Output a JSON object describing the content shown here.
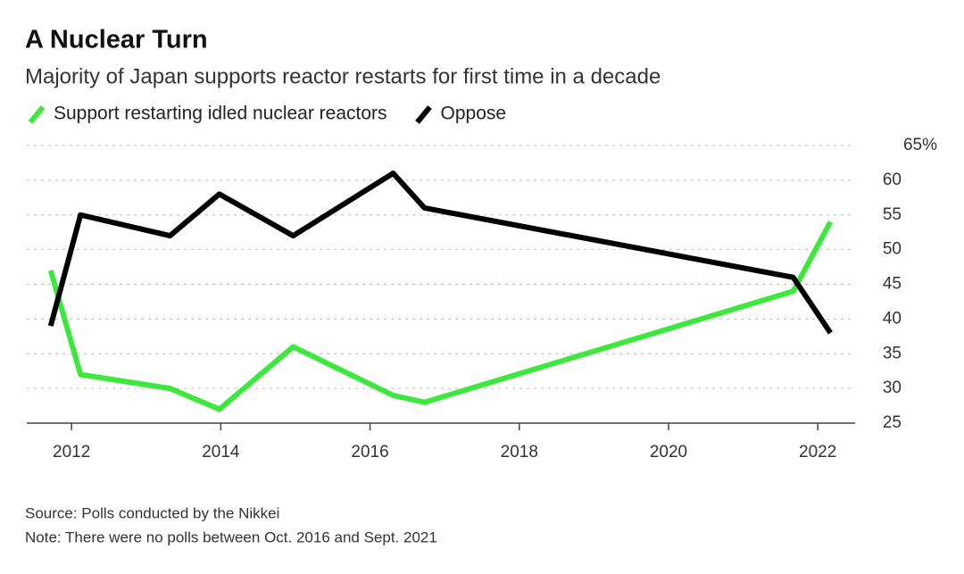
{
  "chart_data": {
    "type": "line",
    "title": "A Nuclear Turn",
    "subtitle": "Majority of Japan supports reactor restarts for first time in a decade",
    "source": "Source: Polls conducted by the Nikkei",
    "note": "Note: There were no polls between Oct. 2016 and Sept. 2021",
    "x": [
      2011.72,
      2012.12,
      2013.32,
      2013.98,
      2014.97,
      2016.31,
      2016.73,
      2021.67,
      2022.17
    ],
    "series": [
      {
        "name": "Support restarting idled nuclear reactors",
        "color": "#3de83d",
        "values": [
          47,
          32,
          30,
          27,
          36,
          29,
          28,
          44,
          54
        ]
      },
      {
        "name": "Oppose",
        "color": "#000000",
        "values": [
          39,
          55,
          52,
          58,
          52,
          61,
          56,
          46,
          38
        ]
      }
    ],
    "xlim": [
      2011.4,
      2022.5
    ],
    "xticks": [
      2012,
      2014,
      2016,
      2018,
      2020,
      2022
    ],
    "ylim": [
      25,
      65
    ],
    "yticks": [
      25,
      30,
      35,
      40,
      45,
      50,
      55,
      60,
      {
        "value": 65,
        "label": "65%"
      }
    ],
    "grid": true
  }
}
